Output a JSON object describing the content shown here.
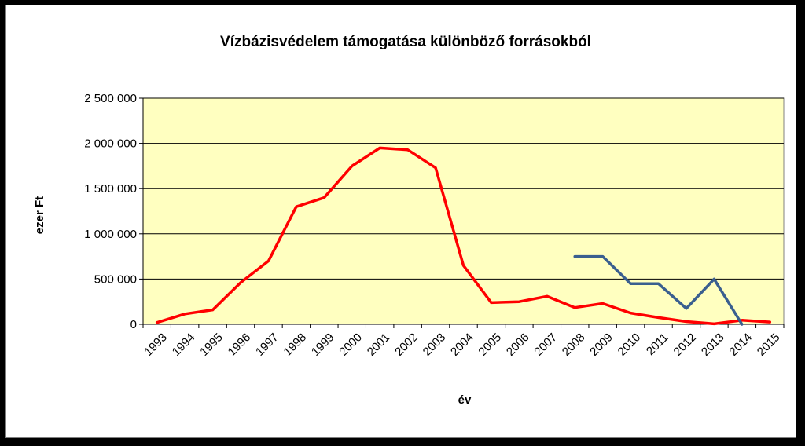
{
  "chart_data": {
    "type": "line",
    "title": "Vízbázisvédelem támogatása különböző forrásokból",
    "xlabel": "év",
    "ylabel": "ezer Ft",
    "categories": [
      "1993",
      "1994",
      "1995",
      "1996",
      "1997",
      "1998",
      "1999",
      "2000",
      "2001",
      "2002",
      "2003",
      "2004",
      "2005",
      "2006",
      "2007",
      "2008",
      "2009",
      "2010",
      "2011",
      "2012",
      "2013",
      "2014",
      "2015"
    ],
    "y_ticks": [
      "0",
      "500 000",
      "1 000 000",
      "1 500 000",
      "2 000 000",
      "2 500 000"
    ],
    "ylim": [
      0,
      2500000
    ],
    "grid": true,
    "legend": "none",
    "plot_background": "#ffffc0",
    "series": [
      {
        "color": "#ff0000",
        "values": [
          20000,
          115000,
          160000,
          460000,
          700000,
          1300000,
          1400000,
          1750000,
          1950000,
          1930000,
          1730000,
          650000,
          240000,
          250000,
          310000,
          185000,
          230000,
          125000,
          75000,
          30000,
          5000,
          45000,
          25000
        ]
      },
      {
        "color": "#3a5f8f",
        "values": [
          null,
          null,
          null,
          null,
          null,
          null,
          null,
          null,
          null,
          null,
          null,
          null,
          null,
          null,
          null,
          750000,
          750000,
          450000,
          450000,
          175000,
          500000,
          0,
          null
        ]
      }
    ]
  }
}
